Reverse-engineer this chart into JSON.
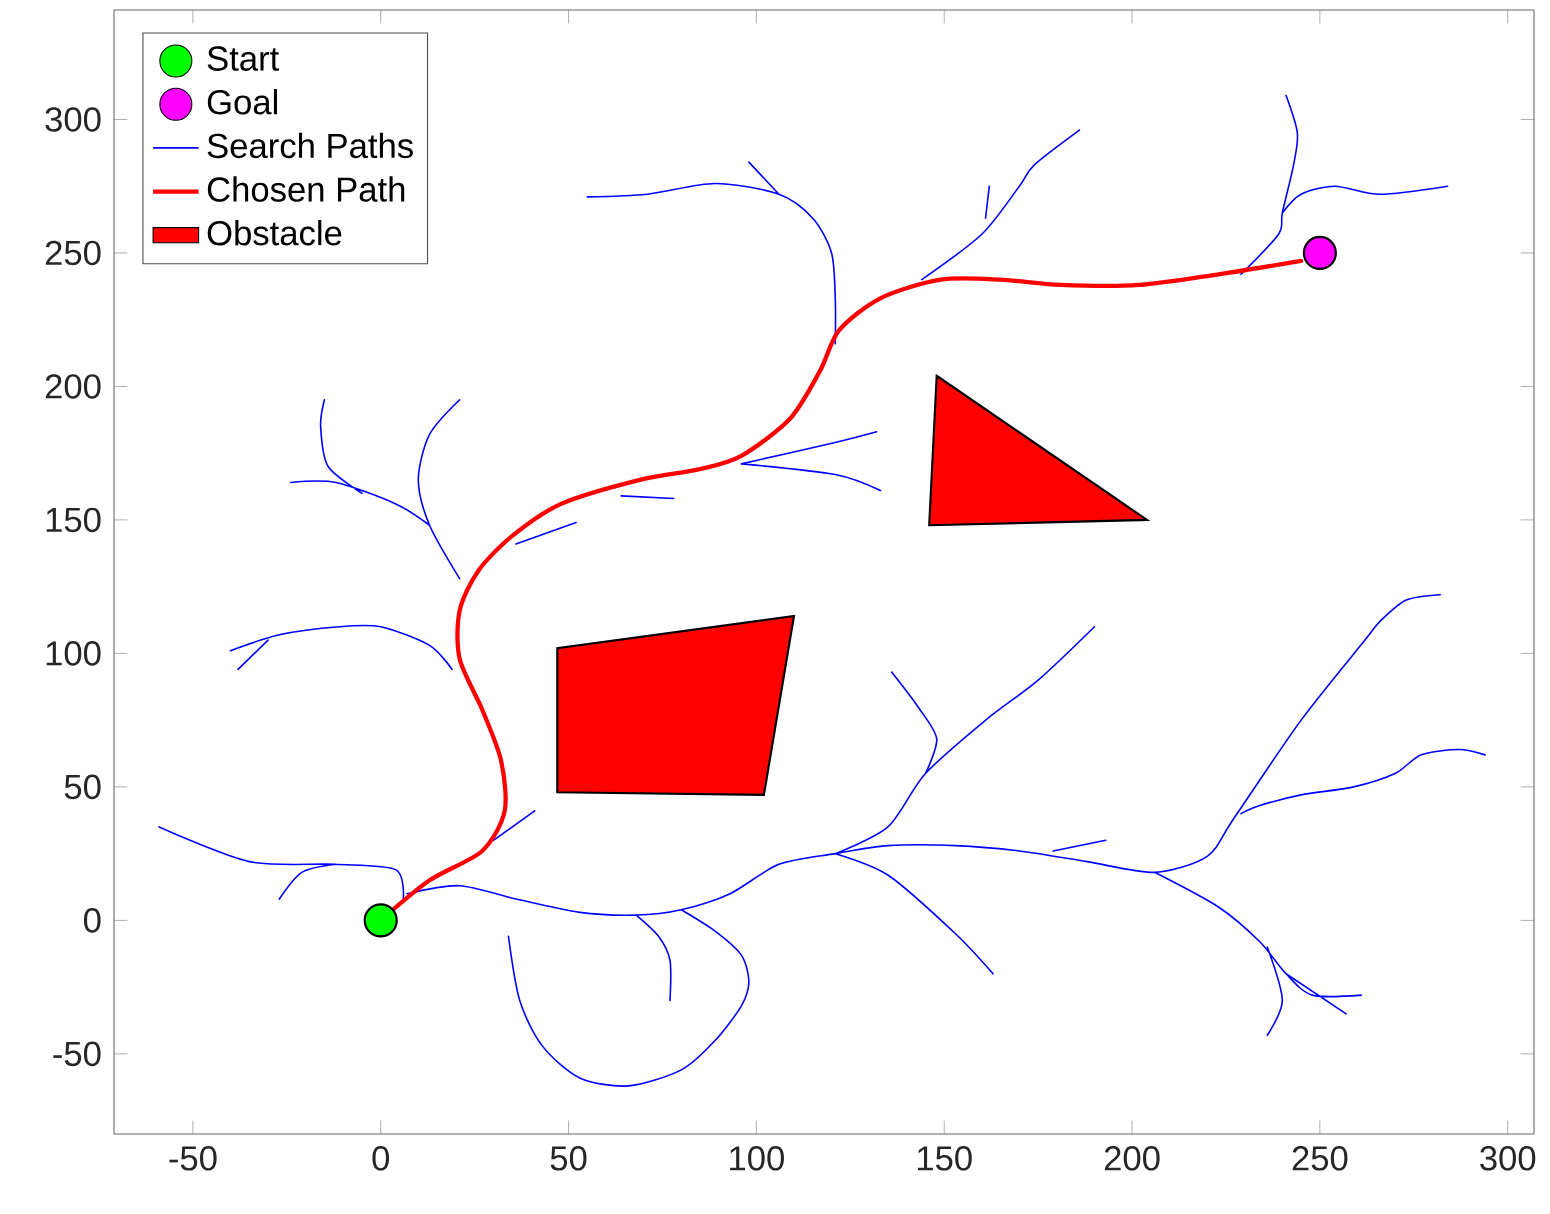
{
  "chart_data": {
    "type": "line",
    "xlim": [
      -71,
      307
    ],
    "ylim": [
      -80,
      341
    ],
    "xticks": [
      -50,
      0,
      50,
      100,
      150,
      200,
      250,
      300
    ],
    "yticks": [
      -50,
      0,
      50,
      100,
      150,
      200,
      250,
      300
    ],
    "legend": "top left",
    "series": [
      {
        "name": "Start",
        "type": "scatter",
        "marker": "circle",
        "color": "#00ff00",
        "x": [
          0
        ],
        "values": [
          0
        ]
      },
      {
        "name": "Goal",
        "type": "scatter",
        "marker": "circle",
        "color": "#ff00ff",
        "x": [
          250
        ],
        "values": [
          250
        ]
      },
      {
        "name": "Search Paths",
        "type": "line",
        "color": "#0000ff",
        "x": [
          6,
          4,
          -12,
          -35,
          -59,
          null,
          -12,
          -21,
          -27,
          null,
          19,
          13,
          0,
          -11,
          -27,
          -40,
          null,
          -30,
          -38,
          null,
          21,
          13,
          10,
          13,
          21,
          null,
          13,
          4,
          -12,
          -24,
          null,
          -5,
          -14,
          -16,
          -15,
          null,
          30,
          41,
          null,
          36,
          52,
          null,
          64,
          78,
          null,
          96,
          121,
          132,
          null,
          96,
          121,
          133,
          null,
          55,
          71,
          89,
          106,
          115,
          120,
          121,
          121,
          null,
          98,
          106,
          null,
          144,
          160,
          170,
          174,
          186,
          null,
          161,
          162,
          null,
          229,
          239,
          240,
          243,
          244,
          241,
          null,
          240,
          245,
          254,
          266,
          284,
          null,
          7,
          21,
          36,
          53,
          68,
          80,
          93,
          106,
          121,
          135,
          153,
          170,
          188,
          206,
          220,
          227,
          245,
          262,
          266,
          273,
          282,
          null,
          229,
          234,
          245,
          259,
          270,
          277,
          287,
          294,
          null,
          206,
          223,
          234,
          241,
          248,
          261,
          null,
          241,
          257,
          null,
          236,
          240,
          236,
          null,
          121,
          135,
          153,
          163,
          null,
          121,
          135,
          145,
          161,
          175,
          190,
          null,
          145,
          148,
          143,
          136,
          null,
          179,
          193,
          null,
          68,
          74,
          77,
          77,
          null,
          80,
          89,
          96,
          98,
          96,
          89,
          80,
          66,
          53,
          43,
          37,
          34
        ],
        "values": [
          8,
          19,
          21,
          22,
          35,
          null,
          21,
          18,
          8,
          null,
          94,
          103,
          110,
          110,
          107,
          101,
          null,
          105,
          94,
          null,
          128,
          148,
          165,
          182,
          195,
          null,
          148,
          156,
          164,
          164,
          null,
          160,
          170,
          185,
          195,
          null,
          30,
          41,
          null,
          141,
          149,
          null,
          159,
          158,
          null,
          171,
          179,
          183,
          null,
          171,
          167,
          161,
          null,
          271,
          272,
          276,
          272,
          263,
          250,
          233,
          216,
          null,
          284,
          272,
          null,
          240,
          257,
          275,
          283,
          296,
          null,
          263,
          275,
          null,
          242,
          257,
          265,
          283,
          295,
          309,
          null,
          265,
          272,
          275,
          272,
          275,
          null,
          10,
          13,
          8,
          3,
          2,
          4,
          10,
          21,
          25,
          28,
          28,
          26,
          22,
          18,
          24,
          38,
          75,
          105,
          112,
          120,
          122,
          null,
          40,
          43,
          47,
          50,
          55,
          62,
          64,
          62,
          null,
          18,
          5,
          -8,
          -20,
          -28,
          -28,
          null,
          -20,
          -35,
          null,
          -10,
          -30,
          -43,
          null,
          25,
          17,
          -5,
          -20,
          null,
          25,
          35,
          55,
          75,
          90,
          110,
          null,
          55,
          68,
          80,
          93,
          null,
          26,
          30,
          null,
          2,
          -6,
          -15,
          -30,
          null,
          4,
          -4,
          -13,
          -23,
          -32,
          -45,
          -56,
          -62,
          -59,
          -47,
          -30,
          -6
        ]
      },
      {
        "name": "Chosen Path",
        "type": "line",
        "color": "#ff0000",
        "x": [
          0,
          13,
          27,
          33,
          32,
          27,
          21,
          21,
          26,
          35,
          48,
          69,
          85,
          96,
          109,
          117,
          122,
          133,
          149,
          165,
          181,
          202,
          223,
          245
        ],
        "values": [
          0,
          15,
          26,
          41,
          60,
          79,
          98,
          116,
          131,
          144,
          156,
          165,
          169,
          174,
          188,
          206,
          221,
          233,
          240,
          240,
          238,
          238,
          242,
          247
        ]
      },
      {
        "name": "Obstacle",
        "type": "area",
        "color": "#ff0000",
        "x": [
          47,
          47,
          110,
          102,
          null,
          146,
          148,
          204
        ],
        "values": [
          48,
          102,
          114,
          47,
          null,
          148,
          204,
          150
        ]
      }
    ]
  }
}
